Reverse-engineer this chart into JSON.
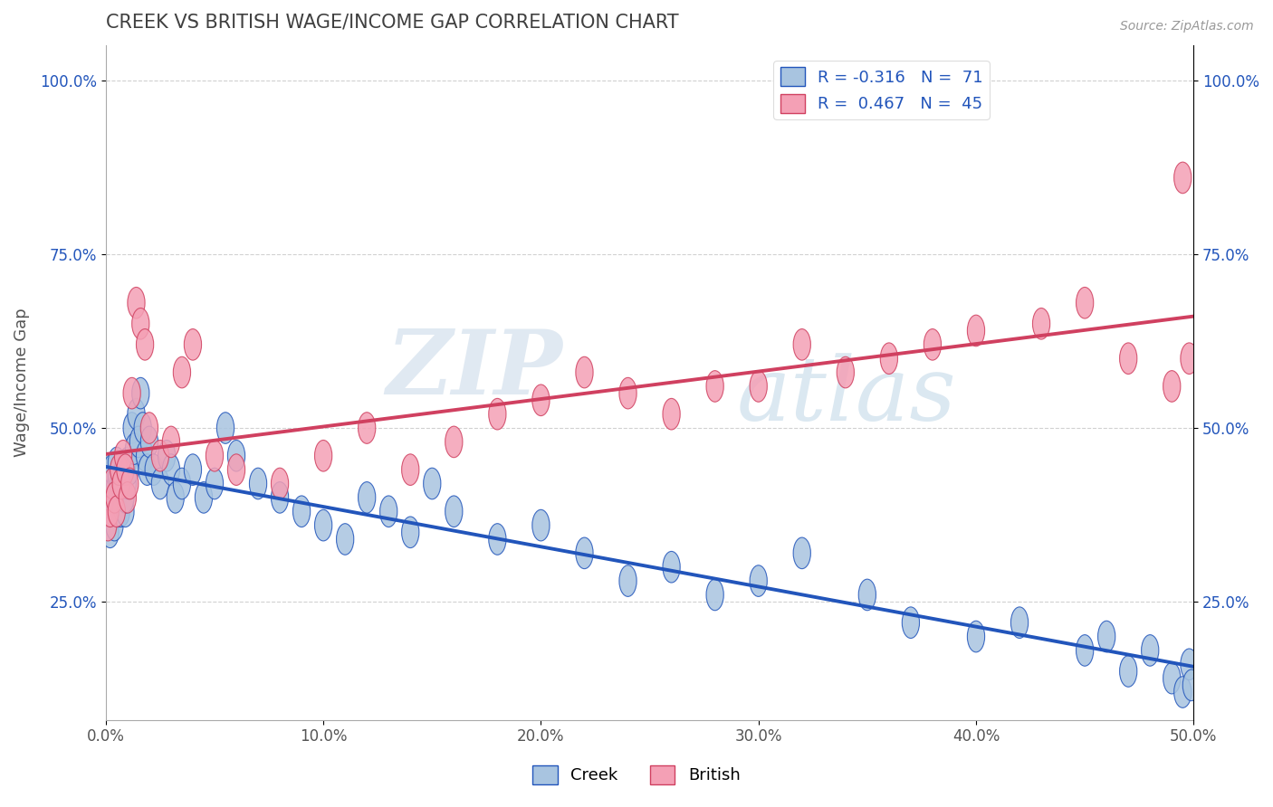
{
  "title": "CREEK VS BRITISH WAGE/INCOME GAP CORRELATION CHART",
  "source_text": "Source: ZipAtlas.com",
  "ylabel": "Wage/Income Gap",
  "xlim": [
    0.0,
    0.5
  ],
  "ylim": [
    0.08,
    1.05
  ],
  "xtick_labels": [
    "0.0%",
    "10.0%",
    "20.0%",
    "30.0%",
    "40.0%",
    "50.0%"
  ],
  "xtick_vals": [
    0.0,
    0.1,
    0.2,
    0.3,
    0.4,
    0.5
  ],
  "ytick_labels": [
    "25.0%",
    "50.0%",
    "75.0%",
    "100.0%"
  ],
  "ytick_vals": [
    0.25,
    0.5,
    0.75,
    1.0
  ],
  "creek_R": -0.316,
  "creek_N": 71,
  "british_R": 0.467,
  "british_N": 45,
  "creek_color": "#a8c4e0",
  "british_color": "#f4a0b5",
  "creek_line_color": "#2255bb",
  "british_line_color": "#d04060",
  "creek_x": [
    0.001,
    0.001,
    0.002,
    0.002,
    0.003,
    0.003,
    0.004,
    0.004,
    0.005,
    0.005,
    0.006,
    0.006,
    0.007,
    0.007,
    0.008,
    0.008,
    0.009,
    0.009,
    0.01,
    0.01,
    0.011,
    0.012,
    0.013,
    0.014,
    0.015,
    0.016,
    0.017,
    0.018,
    0.019,
    0.02,
    0.022,
    0.025,
    0.028,
    0.03,
    0.032,
    0.035,
    0.04,
    0.045,
    0.05,
    0.055,
    0.06,
    0.07,
    0.08,
    0.09,
    0.1,
    0.11,
    0.12,
    0.13,
    0.14,
    0.15,
    0.16,
    0.18,
    0.2,
    0.22,
    0.24,
    0.26,
    0.28,
    0.3,
    0.32,
    0.35,
    0.37,
    0.4,
    0.42,
    0.45,
    0.46,
    0.47,
    0.48,
    0.49,
    0.495,
    0.498,
    0.499
  ],
  "creek_y": [
    0.38,
    0.42,
    0.35,
    0.4,
    0.42,
    0.44,
    0.36,
    0.41,
    0.43,
    0.45,
    0.38,
    0.42,
    0.4,
    0.38,
    0.42,
    0.44,
    0.38,
    0.4,
    0.42,
    0.45,
    0.44,
    0.5,
    0.47,
    0.52,
    0.48,
    0.55,
    0.5,
    0.46,
    0.44,
    0.48,
    0.44,
    0.42,
    0.46,
    0.44,
    0.4,
    0.42,
    0.44,
    0.4,
    0.42,
    0.5,
    0.46,
    0.42,
    0.4,
    0.38,
    0.36,
    0.34,
    0.4,
    0.38,
    0.35,
    0.42,
    0.38,
    0.34,
    0.36,
    0.32,
    0.28,
    0.3,
    0.26,
    0.28,
    0.32,
    0.26,
    0.22,
    0.2,
    0.22,
    0.18,
    0.2,
    0.15,
    0.18,
    0.14,
    0.12,
    0.16,
    0.13
  ],
  "british_x": [
    0.001,
    0.002,
    0.003,
    0.004,
    0.005,
    0.006,
    0.007,
    0.008,
    0.009,
    0.01,
    0.011,
    0.012,
    0.014,
    0.016,
    0.018,
    0.02,
    0.025,
    0.03,
    0.035,
    0.04,
    0.05,
    0.06,
    0.08,
    0.1,
    0.12,
    0.14,
    0.16,
    0.18,
    0.2,
    0.22,
    0.24,
    0.26,
    0.28,
    0.3,
    0.32,
    0.34,
    0.36,
    0.38,
    0.4,
    0.43,
    0.45,
    0.47,
    0.49,
    0.495,
    0.498
  ],
  "british_y": [
    0.36,
    0.38,
    0.42,
    0.4,
    0.38,
    0.44,
    0.42,
    0.46,
    0.44,
    0.4,
    0.42,
    0.55,
    0.68,
    0.65,
    0.62,
    0.5,
    0.46,
    0.48,
    0.58,
    0.62,
    0.46,
    0.44,
    0.42,
    0.46,
    0.5,
    0.44,
    0.48,
    0.52,
    0.54,
    0.58,
    0.55,
    0.52,
    0.56,
    0.56,
    0.62,
    0.58,
    0.6,
    0.62,
    0.64,
    0.65,
    0.68,
    0.6,
    0.56,
    0.86,
    0.6
  ],
  "watermark_zip": "ZIP",
  "watermark_atlas": "atlas",
  "background_color": "#ffffff",
  "grid_color": "#cccccc",
  "title_color": "#404040",
  "axis_label_color": "#555555",
  "tick_color": "#2255bb"
}
